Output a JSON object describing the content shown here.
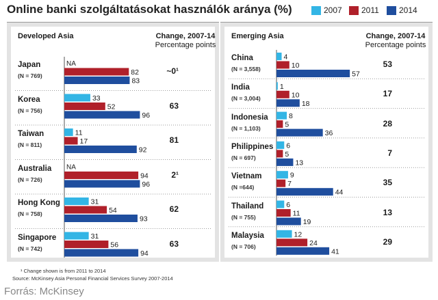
{
  "title": "Online banki szolgáltatásokat használók aránya (%)",
  "legend": [
    {
      "label": "2007",
      "color": "#33b5e5"
    },
    {
      "label": "2011",
      "color": "#b0202a"
    },
    {
      "label": "2014",
      "color": "#1f4e9e"
    }
  ],
  "change_header": {
    "line1": "Change, 2007-14",
    "line2": "Percentage points"
  },
  "na_label": "NA",
  "footnotes": {
    "note": "¹ Change shown is from 2011 to 2014",
    "source": "Source: McKinsey Asia Personal Financial Services Survey 2007-2014"
  },
  "credit": "Forrás: McKinsey",
  "chart_data": [
    {
      "type": "bar",
      "title": "Developed Asia",
      "series_names": [
        "2007",
        "2011",
        "2014"
      ],
      "groups": [
        {
          "name": "Japan",
          "n": "(N = 769)",
          "values": [
            null,
            82,
            83
          ],
          "change": "~0¹"
        },
        {
          "name": "Korea",
          "n": "(N = 756)",
          "values": [
            33,
            52,
            96
          ],
          "change": "63"
        },
        {
          "name": "Taiwan",
          "n": "(N = 811)",
          "values": [
            11,
            17,
            92
          ],
          "change": "81"
        },
        {
          "name": "Australia",
          "n": "(N = 726)",
          "values": [
            null,
            94,
            96
          ],
          "change": "2¹"
        },
        {
          "name": "Hong Kong",
          "n": "(N = 758)",
          "values": [
            31,
            54,
            93
          ],
          "change": "62"
        },
        {
          "name": "Singapore",
          "n": "(N = 742)",
          "values": [
            31,
            56,
            94
          ],
          "change": "63"
        }
      ]
    },
    {
      "type": "bar",
      "title": "Emerging Asia",
      "series_names": [
        "2007",
        "2011",
        "2014"
      ],
      "groups": [
        {
          "name": "China",
          "n": "(N = 3,558)",
          "values": [
            4,
            10,
            57
          ],
          "change": "53"
        },
        {
          "name": "India",
          "n": "(N = 3,004)",
          "values": [
            1,
            10,
            18
          ],
          "change": "17"
        },
        {
          "name": "Indonesia",
          "n": "(N = 1,103)",
          "values": [
            8,
            5,
            36
          ],
          "change": "28"
        },
        {
          "name": "Philippines",
          "n": "(N = 697)",
          "values": [
            6,
            5,
            13
          ],
          "change": "7"
        },
        {
          "name": "Vietnam",
          "n": "(N =644)",
          "values": [
            9,
            7,
            44
          ],
          "change": "35"
        },
        {
          "name": "Thailand",
          "n": "(N = 755)",
          "values": [
            6,
            11,
            19
          ],
          "change": "13"
        },
        {
          "name": "Malaysia",
          "n": "(N = 706)",
          "values": [
            12,
            24,
            41
          ],
          "change": "29"
        }
      ]
    }
  ]
}
